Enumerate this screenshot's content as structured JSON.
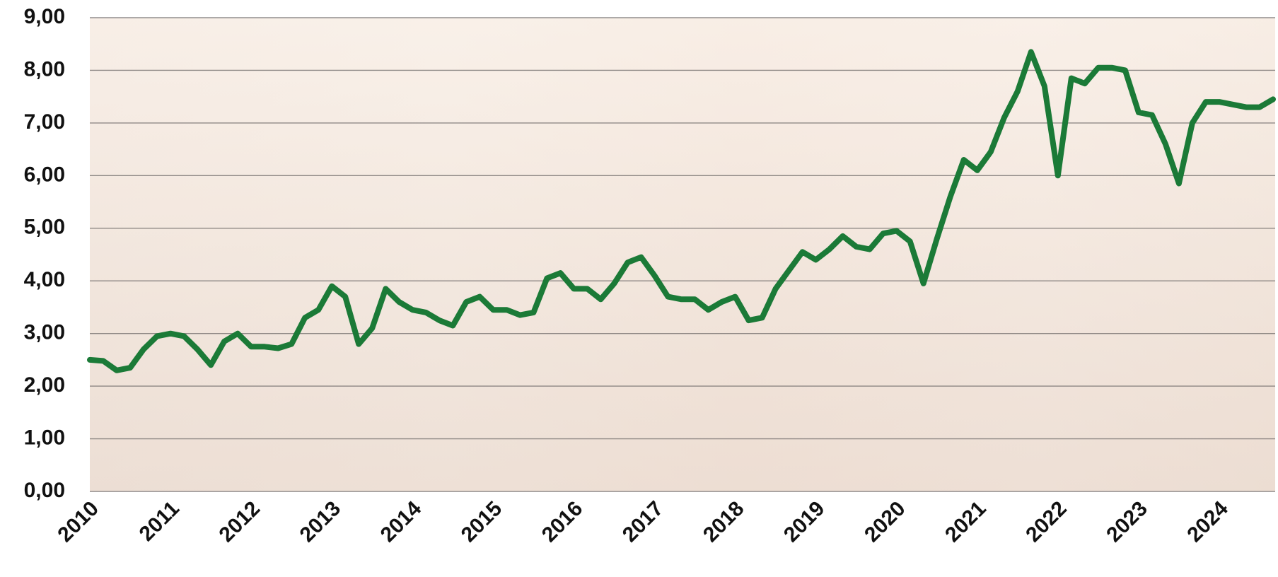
{
  "chart_data": {
    "type": "line",
    "categories": [
      "2010",
      null,
      null,
      null,
      null,
      null,
      "2011",
      null,
      null,
      null,
      null,
      null,
      "2012",
      null,
      null,
      null,
      null,
      null,
      "2013",
      null,
      null,
      null,
      null,
      null,
      "2014",
      null,
      null,
      null,
      null,
      null,
      "2015",
      null,
      null,
      null,
      null,
      null,
      "2016",
      null,
      null,
      null,
      null,
      null,
      "2017",
      null,
      null,
      null,
      null,
      null,
      "2018",
      null,
      null,
      null,
      null,
      null,
      "2019",
      null,
      null,
      null,
      null,
      null,
      "2020",
      null,
      null,
      null,
      null,
      null,
      "2021",
      null,
      null,
      null,
      null,
      null,
      "2022",
      null,
      null,
      null,
      null,
      null,
      "2023",
      null,
      null,
      null,
      null,
      null,
      "2024",
      null,
      null,
      null,
      null
    ],
    "values": [
      2.5,
      2.48,
      2.3,
      2.35,
      2.7,
      2.95,
      3.0,
      2.95,
      2.7,
      2.4,
      2.85,
      3.0,
      2.75,
      2.75,
      2.72,
      2.8,
      3.3,
      3.45,
      3.9,
      3.7,
      2.8,
      3.1,
      3.85,
      3.6,
      3.45,
      3.4,
      3.25,
      3.15,
      3.6,
      3.7,
      3.45,
      3.45,
      3.35,
      3.4,
      4.05,
      4.15,
      3.85,
      3.85,
      3.65,
      3.95,
      4.35,
      4.45,
      4.1,
      3.7,
      3.65,
      3.65,
      3.45,
      3.6,
      3.7,
      3.25,
      3.3,
      3.85,
      4.2,
      4.55,
      4.4,
      4.6,
      4.85,
      4.65,
      4.6,
      4.9,
      4.95,
      4.75,
      3.95,
      4.8,
      5.6,
      6.3,
      6.1,
      6.45,
      7.1,
      7.6,
      8.35,
      7.7,
      6.0,
      7.85,
      7.75,
      8.05,
      8.05,
      8.0,
      7.2,
      7.15,
      6.6,
      5.85,
      7.0,
      7.4,
      7.4,
      7.35,
      7.3,
      7.3,
      7.45
    ],
    "color": "#1b7a37",
    "ylim": [
      0,
      9
    ],
    "yticks": [
      {
        "value": 0,
        "label": "0,00"
      },
      {
        "value": 1,
        "label": "1,00"
      },
      {
        "value": 2,
        "label": "2,00"
      },
      {
        "value": 3,
        "label": "3,00"
      },
      {
        "value": 4,
        "label": "4,00"
      },
      {
        "value": 5,
        "label": "5,00"
      },
      {
        "value": 6,
        "label": "6,00"
      },
      {
        "value": 7,
        "label": "7,00"
      },
      {
        "value": 8,
        "label": "8,00"
      },
      {
        "value": 9,
        "label": "9,00"
      }
    ],
    "grid": true
  }
}
